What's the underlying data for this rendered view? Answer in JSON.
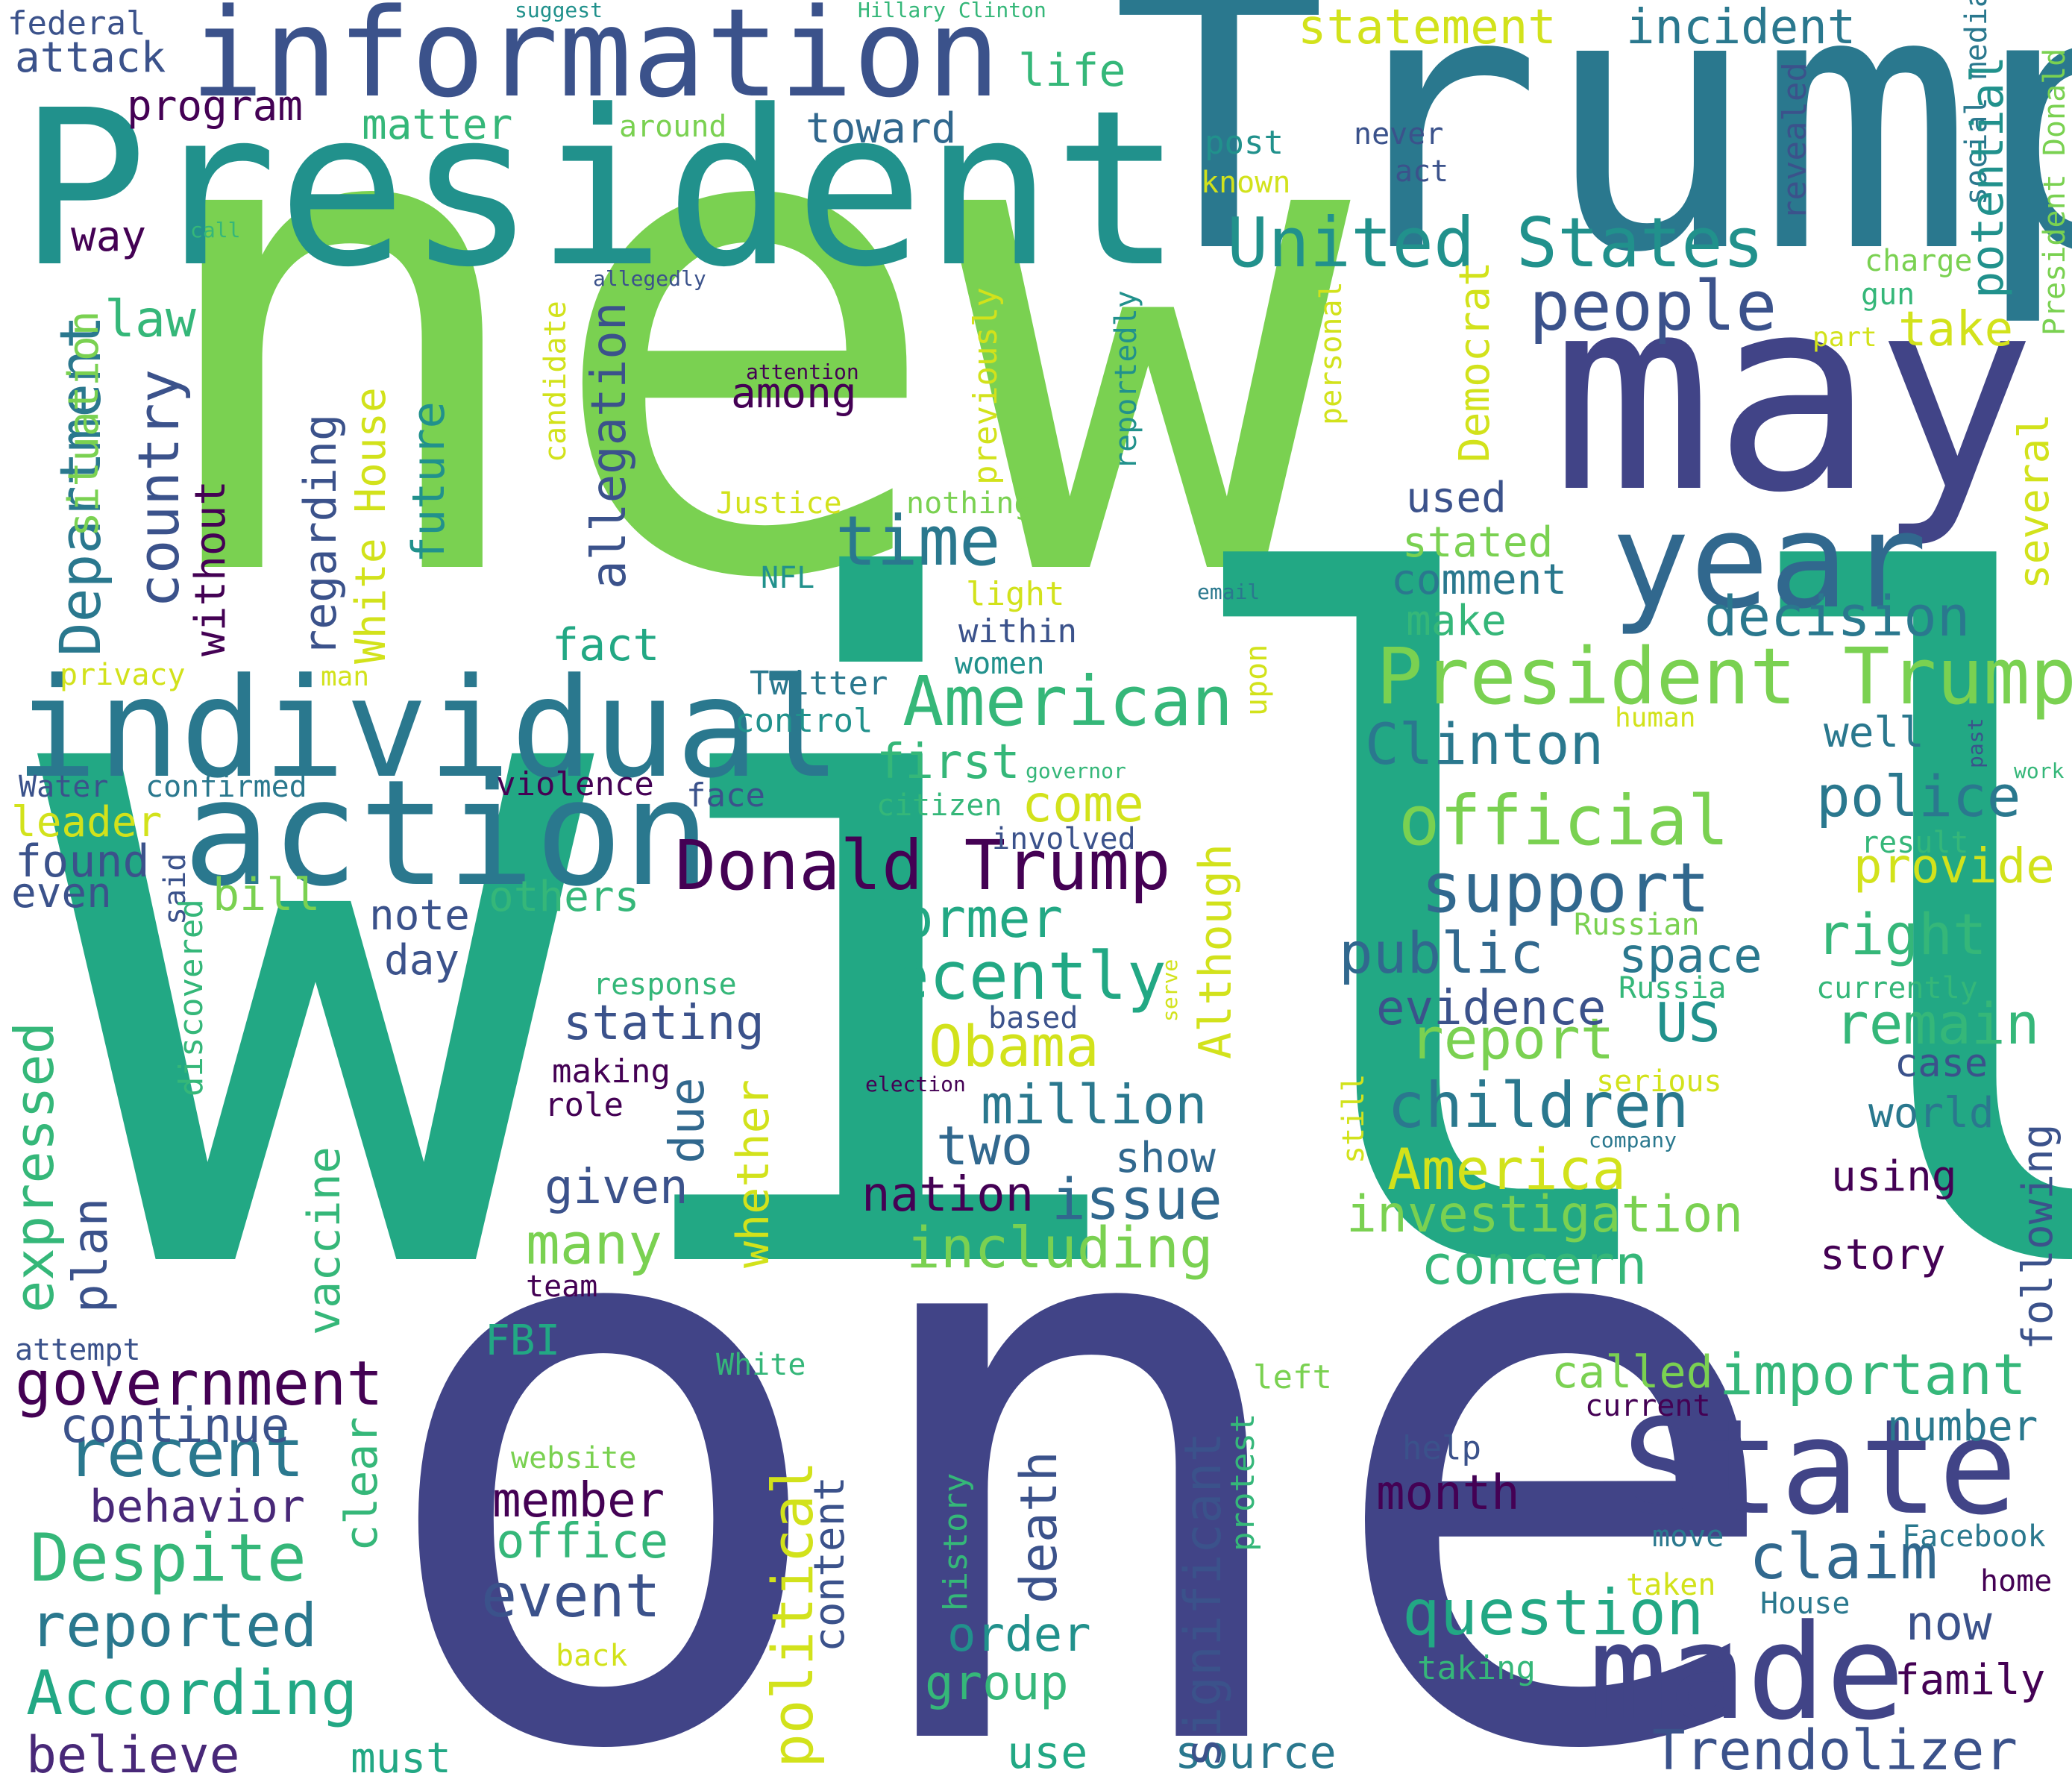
{
  "palette": {
    "lime": "#7ad151",
    "green": "#22a884",
    "teal": "#2a788e",
    "blue": "#414487",
    "purple": "#440154",
    "yellow": "#d2e21b",
    "seafoam": "#35b779",
    "cyan": "#21918c"
  },
  "words": [
    {
      "text": "new",
      "color": "#7ad151"
    },
    {
      "text": "will",
      "color": "#22a884"
    },
    {
      "text": "one",
      "color": "#414487"
    },
    {
      "text": "Trump",
      "color": "#2a788e"
    },
    {
      "text": "President",
      "color": "#21918c"
    },
    {
      "text": "may",
      "color": "#414487"
    },
    {
      "text": "information",
      "color": "#3b528b"
    },
    {
      "text": "individual",
      "color": "#2a788e"
    },
    {
      "text": "action",
      "color": "#2a788e"
    },
    {
      "text": "State",
      "color": "#414487"
    },
    {
      "text": "made",
      "color": "#414487"
    },
    {
      "text": "year",
      "color": "#31688e"
    },
    {
      "text": "President Trump",
      "color": "#7ad151"
    },
    {
      "text": "United States",
      "color": "#21918c"
    },
    {
      "text": "Donald Trump",
      "color": "#440154"
    },
    {
      "text": "American",
      "color": "#35b779"
    },
    {
      "text": "official",
      "color": "#7ad151"
    },
    {
      "text": "support",
      "color": "#31688e"
    },
    {
      "text": "recently",
      "color": "#22a884"
    },
    {
      "text": "people",
      "color": "#3b528b"
    },
    {
      "text": "time",
      "color": "#2a788e"
    },
    {
      "text": "Trendolizer",
      "color": "#3b528b"
    },
    {
      "text": "question",
      "color": "#22a884"
    },
    {
      "text": "government",
      "color": "#440154"
    },
    {
      "text": "Despite",
      "color": "#35b779"
    },
    {
      "text": "According",
      "color": "#22a884"
    },
    {
      "text": "reported",
      "color": "#2a788e"
    },
    {
      "text": "recent",
      "color": "#2a788e"
    },
    {
      "text": "children",
      "color": "#2a788e"
    },
    {
      "text": "investigation",
      "color": "#7ad151"
    },
    {
      "text": "including",
      "color": "#7ad151"
    },
    {
      "text": "America",
      "color": "#d2e21b"
    },
    {
      "text": "Obama",
      "color": "#d2e21b"
    },
    {
      "text": "claim",
      "color": "#31688e"
    },
    {
      "text": "important",
      "color": "#35b779"
    },
    {
      "text": "decision",
      "color": "#2a788e"
    },
    {
      "text": "police",
      "color": "#2a788e"
    },
    {
      "text": "Clinton",
      "color": "#2a788e"
    },
    {
      "text": "public",
      "color": "#31688e"
    },
    {
      "text": "report",
      "color": "#7ad151"
    },
    {
      "text": "million",
      "color": "#2a788e"
    },
    {
      "text": "issue",
      "color": "#31688e"
    },
    {
      "text": "remain",
      "color": "#35b779"
    },
    {
      "text": "right",
      "color": "#35b779"
    },
    {
      "text": "former",
      "color": "#22a884"
    },
    {
      "text": "concern",
      "color": "#35b779"
    },
    {
      "text": "event",
      "color": "#3b528b"
    },
    {
      "text": "month",
      "color": "#440154"
    },
    {
      "text": "statement",
      "color": "#d2e21b"
    },
    {
      "text": "incident",
      "color": "#2a788e"
    },
    {
      "text": "many",
      "color": "#7ad151"
    },
    {
      "text": "two",
      "color": "#31688e"
    },
    {
      "text": "stating",
      "color": "#3b528b"
    },
    {
      "text": "come",
      "color": "#d2e21b"
    },
    {
      "text": "first",
      "color": "#35b779"
    },
    {
      "text": "space",
      "color": "#2a788e"
    },
    {
      "text": "evidence",
      "color": "#3b528b"
    },
    {
      "text": "US",
      "color": "#21918c"
    },
    {
      "text": "provide",
      "color": "#d2e21b"
    },
    {
      "text": "nation",
      "color": "#440154"
    },
    {
      "text": "given",
      "color": "#3b528b"
    },
    {
      "text": "member",
      "color": "#440154"
    },
    {
      "text": "office",
      "color": "#35b779"
    },
    {
      "text": "believe",
      "color": "#482878"
    },
    {
      "text": "behavior",
      "color": "#482878"
    },
    {
      "text": "continue",
      "color": "#3b528b"
    },
    {
      "text": "order",
      "color": "#21918c"
    },
    {
      "text": "group",
      "color": "#35b779"
    },
    {
      "text": "use",
      "color": "#22a884"
    },
    {
      "text": "must",
      "color": "#22a884"
    },
    {
      "text": "source",
      "color": "#2a788e"
    },
    {
      "text": "family",
      "color": "#440154"
    },
    {
      "text": "now",
      "color": "#3b528b"
    },
    {
      "text": "take",
      "color": "#d2e21b"
    },
    {
      "text": "law",
      "color": "#35b779"
    },
    {
      "text": "fact",
      "color": "#22a884"
    },
    {
      "text": "among",
      "color": "#440154"
    },
    {
      "text": "used",
      "color": "#3b528b"
    },
    {
      "text": "stated",
      "color": "#7ad151"
    },
    {
      "text": "comment",
      "color": "#2a788e"
    },
    {
      "text": "make",
      "color": "#35b779"
    },
    {
      "text": "attack",
      "color": "#3b528b"
    },
    {
      "text": "program",
      "color": "#440154"
    },
    {
      "text": "matter",
      "color": "#35b779"
    },
    {
      "text": "toward",
      "color": "#31688e"
    },
    {
      "text": "life",
      "color": "#35b779"
    },
    {
      "text": "way",
      "color": "#440154"
    },
    {
      "text": "federal",
      "color": "#3b528b"
    },
    {
      "text": "well",
      "color": "#2a788e"
    },
    {
      "text": "world",
      "color": "#2a788e"
    },
    {
      "text": "case",
      "color": "#3b528b"
    },
    {
      "text": "using",
      "color": "#440154"
    },
    {
      "text": "story",
      "color": "#440154"
    },
    {
      "text": "number",
      "color": "#2a788e"
    },
    {
      "text": "note",
      "color": "#3b528b"
    },
    {
      "text": "day",
      "color": "#3b528b"
    },
    {
      "text": "others",
      "color": "#35b779"
    },
    {
      "text": "found",
      "color": "#3b528b"
    },
    {
      "text": "even",
      "color": "#3b528b"
    },
    {
      "text": "bill",
      "color": "#7ad151"
    },
    {
      "text": "leader",
      "color": "#d2e21b"
    },
    {
      "text": "FBI",
      "color": "#22a884"
    },
    {
      "text": "show",
      "color": "#31688e"
    },
    {
      "text": "face",
      "color": "#3b528b"
    },
    {
      "text": "Twitter",
      "color": "#2a788e"
    },
    {
      "text": "control",
      "color": "#21918c"
    },
    {
      "text": "citizen",
      "color": "#35b779"
    },
    {
      "text": "involved",
      "color": "#3b528b"
    },
    {
      "text": "violence",
      "color": "#440154"
    },
    {
      "text": "Water",
      "color": "#3b528b"
    },
    {
      "text": "confirmed",
      "color": "#2a788e"
    },
    {
      "text": "privacy",
      "color": "#d2e21b"
    },
    {
      "text": "man",
      "color": "#d2e21b"
    },
    {
      "text": "within",
      "color": "#3b528b"
    },
    {
      "text": "women",
      "color": "#21918c"
    },
    {
      "text": "light",
      "color": "#d2e21b"
    },
    {
      "text": "NFL",
      "color": "#21918c"
    },
    {
      "text": "email",
      "color": "#2a788e"
    },
    {
      "text": "Justice",
      "color": "#d2e21b"
    },
    {
      "text": "nothing",
      "color": "#7ad151"
    },
    {
      "text": "attention",
      "color": "#440154"
    },
    {
      "text": "allegedly",
      "color": "#3b528b"
    },
    {
      "text": "around",
      "color": "#7ad151"
    },
    {
      "text": "call",
      "color": "#35b779"
    },
    {
      "text": "suggest",
      "color": "#21918c"
    },
    {
      "text": "Hillary Clinton",
      "color": "#35b779"
    },
    {
      "text": "post",
      "color": "#21918c"
    },
    {
      "text": "known",
      "color": "#d2e21b"
    },
    {
      "text": "never",
      "color": "#3b528b"
    },
    {
      "text": "act",
      "color": "#3b528b"
    },
    {
      "text": "charge",
      "color": "#7ad151"
    },
    {
      "text": "gun",
      "color": "#35b779"
    },
    {
      "text": "part",
      "color": "#d2e21b"
    },
    {
      "text": "human",
      "color": "#d2e21b"
    },
    {
      "text": "governor",
      "color": "#35b779"
    },
    {
      "text": "work",
      "color": "#35b779"
    },
    {
      "text": "result",
      "color": "#35b779"
    },
    {
      "text": "Russian",
      "color": "#7ad151"
    },
    {
      "text": "Russia",
      "color": "#35b779"
    },
    {
      "text": "currently",
      "color": "#35b779"
    },
    {
      "text": "serious",
      "color": "#d2e21b"
    },
    {
      "text": "company",
      "color": "#2a788e"
    },
    {
      "text": "response",
      "color": "#35b779"
    },
    {
      "text": "based",
      "color": "#3b528b"
    },
    {
      "text": "making",
      "color": "#440154"
    },
    {
      "text": "role",
      "color": "#440154"
    },
    {
      "text": "election",
      "color": "#440154"
    },
    {
      "text": "team",
      "color": "#440154"
    },
    {
      "text": "attempt",
      "color": "#3b528b"
    },
    {
      "text": "White",
      "color": "#35b779"
    },
    {
      "text": "left",
      "color": "#7ad151"
    },
    {
      "text": "called",
      "color": "#7ad151"
    },
    {
      "text": "current",
      "color": "#440154"
    },
    {
      "text": "help",
      "color": "#3b528b"
    },
    {
      "text": "website",
      "color": "#7ad151"
    },
    {
      "text": "back",
      "color": "#d2e21b"
    },
    {
      "text": "move",
      "color": "#2a788e"
    },
    {
      "text": "Facebook",
      "color": "#2a788e"
    },
    {
      "text": "home",
      "color": "#440154"
    },
    {
      "text": "taken",
      "color": "#d2e21b"
    },
    {
      "text": "House",
      "color": "#2a788e"
    },
    {
      "text": "taking",
      "color": "#35b779"
    },
    {
      "text": "Department",
      "color": "#2a788e"
    },
    {
      "text": "situation",
      "color": "#7ad151"
    },
    {
      "text": "country",
      "color": "#3b528b"
    },
    {
      "text": "without",
      "color": "#440154"
    },
    {
      "text": "regarding",
      "color": "#3b528b"
    },
    {
      "text": "White House",
      "color": "#d2e21b"
    },
    {
      "text": "future",
      "color": "#21918c"
    },
    {
      "text": "allegation",
      "color": "#3b528b"
    },
    {
      "text": "candidate",
      "color": "#d2e21b"
    },
    {
      "text": "previously",
      "color": "#d2e21b"
    },
    {
      "text": "reportedly",
      "color": "#21918c"
    },
    {
      "text": "Democrat",
      "color": "#d2e21b"
    },
    {
      "text": "personal",
      "color": "#d2e21b"
    },
    {
      "text": "revealed",
      "color": "#3b528b"
    },
    {
      "text": "social media",
      "color": "#2a788e"
    },
    {
      "text": "potential",
      "color": "#21918c"
    },
    {
      "text": "President Donald",
      "color": "#7ad151"
    },
    {
      "text": "several",
      "color": "#d2e21b"
    },
    {
      "text": "following",
      "color": "#3b528b"
    },
    {
      "text": "upon",
      "color": "#d2e21b"
    },
    {
      "text": "past",
      "color": "#3b528b"
    },
    {
      "text": "Although",
      "color": "#d2e21b"
    },
    {
      "text": "serve",
      "color": "#d2e21b"
    },
    {
      "text": "still",
      "color": "#d2e21b"
    },
    {
      "text": "said",
      "color": "#3b528b"
    },
    {
      "text": "discovered",
      "color": "#35b779"
    },
    {
      "text": "expressed",
      "color": "#35b779"
    },
    {
      "text": "plan",
      "color": "#3b528b"
    },
    {
      "text": "vaccine",
      "color": "#35b779"
    },
    {
      "text": "whether",
      "color": "#d2e21b"
    },
    {
      "text": "due",
      "color": "#31688e"
    },
    {
      "text": "clear",
      "color": "#35b779"
    },
    {
      "text": "political",
      "color": "#d2e21b"
    },
    {
      "text": "content",
      "color": "#3b528b"
    },
    {
      "text": "history",
      "color": "#35b779"
    },
    {
      "text": "death",
      "color": "#3b528b"
    },
    {
      "text": "significant",
      "color": "#3b528b"
    },
    {
      "text": "protest",
      "color": "#35b779"
    }
  ]
}
